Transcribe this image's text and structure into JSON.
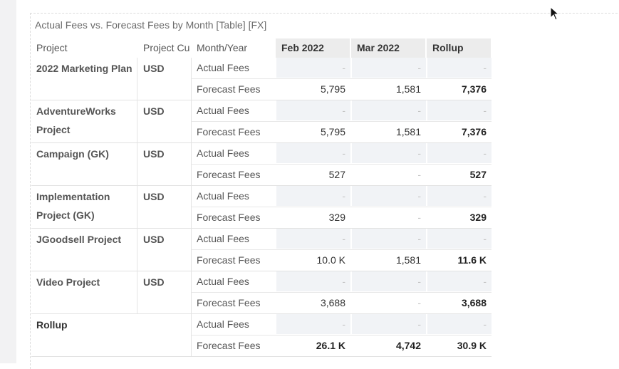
{
  "title": "Actual Fees vs. Forecast Fees by Month [Table] [FX]",
  "headers": {
    "project": "Project",
    "currency": "Project Cu",
    "month_year": "Month/Year",
    "months": [
      "Feb 2022",
      "Mar 2022",
      "Rollup"
    ]
  },
  "row_labels": {
    "actual": "Actual Fees",
    "forecast": "Forecast Fees"
  },
  "groups": [
    {
      "name": "2022 Marketing Plan",
      "currency": "USD",
      "actual": [
        "-",
        "-",
        "-"
      ],
      "forecast": [
        "5,795",
        "1,581",
        "7,376"
      ]
    },
    {
      "name": "AdventureWorks Project",
      "currency": "USD",
      "actual": [
        "-",
        "-",
        "-"
      ],
      "forecast": [
        "5,795",
        "1,581",
        "7,376"
      ]
    },
    {
      "name": "Campaign (GK)",
      "currency": "USD",
      "actual": [
        "-",
        "-",
        "-"
      ],
      "forecast": [
        "527",
        "-",
        "527"
      ]
    },
    {
      "name": "Implementation Project (GK)",
      "currency": "USD",
      "actual": [
        "-",
        "-",
        "-"
      ],
      "forecast": [
        "329",
        "-",
        "329"
      ]
    },
    {
      "name": "JGoodsell Project",
      "currency": "USD",
      "actual": [
        "-",
        "-",
        "-"
      ],
      "forecast": [
        "10.0 K",
        "1,581",
        "11.6 K"
      ]
    },
    {
      "name": "Video Project",
      "currency": "USD",
      "actual": [
        "-",
        "-",
        "-"
      ],
      "forecast": [
        "3,688",
        "-",
        "3,688"
      ]
    },
    {
      "name": "Rollup",
      "currency": "",
      "actual": [
        "-",
        "-",
        "-"
      ],
      "forecast": [
        "26.1 K",
        "4,742",
        "30.9 K"
      ]
    }
  ]
}
